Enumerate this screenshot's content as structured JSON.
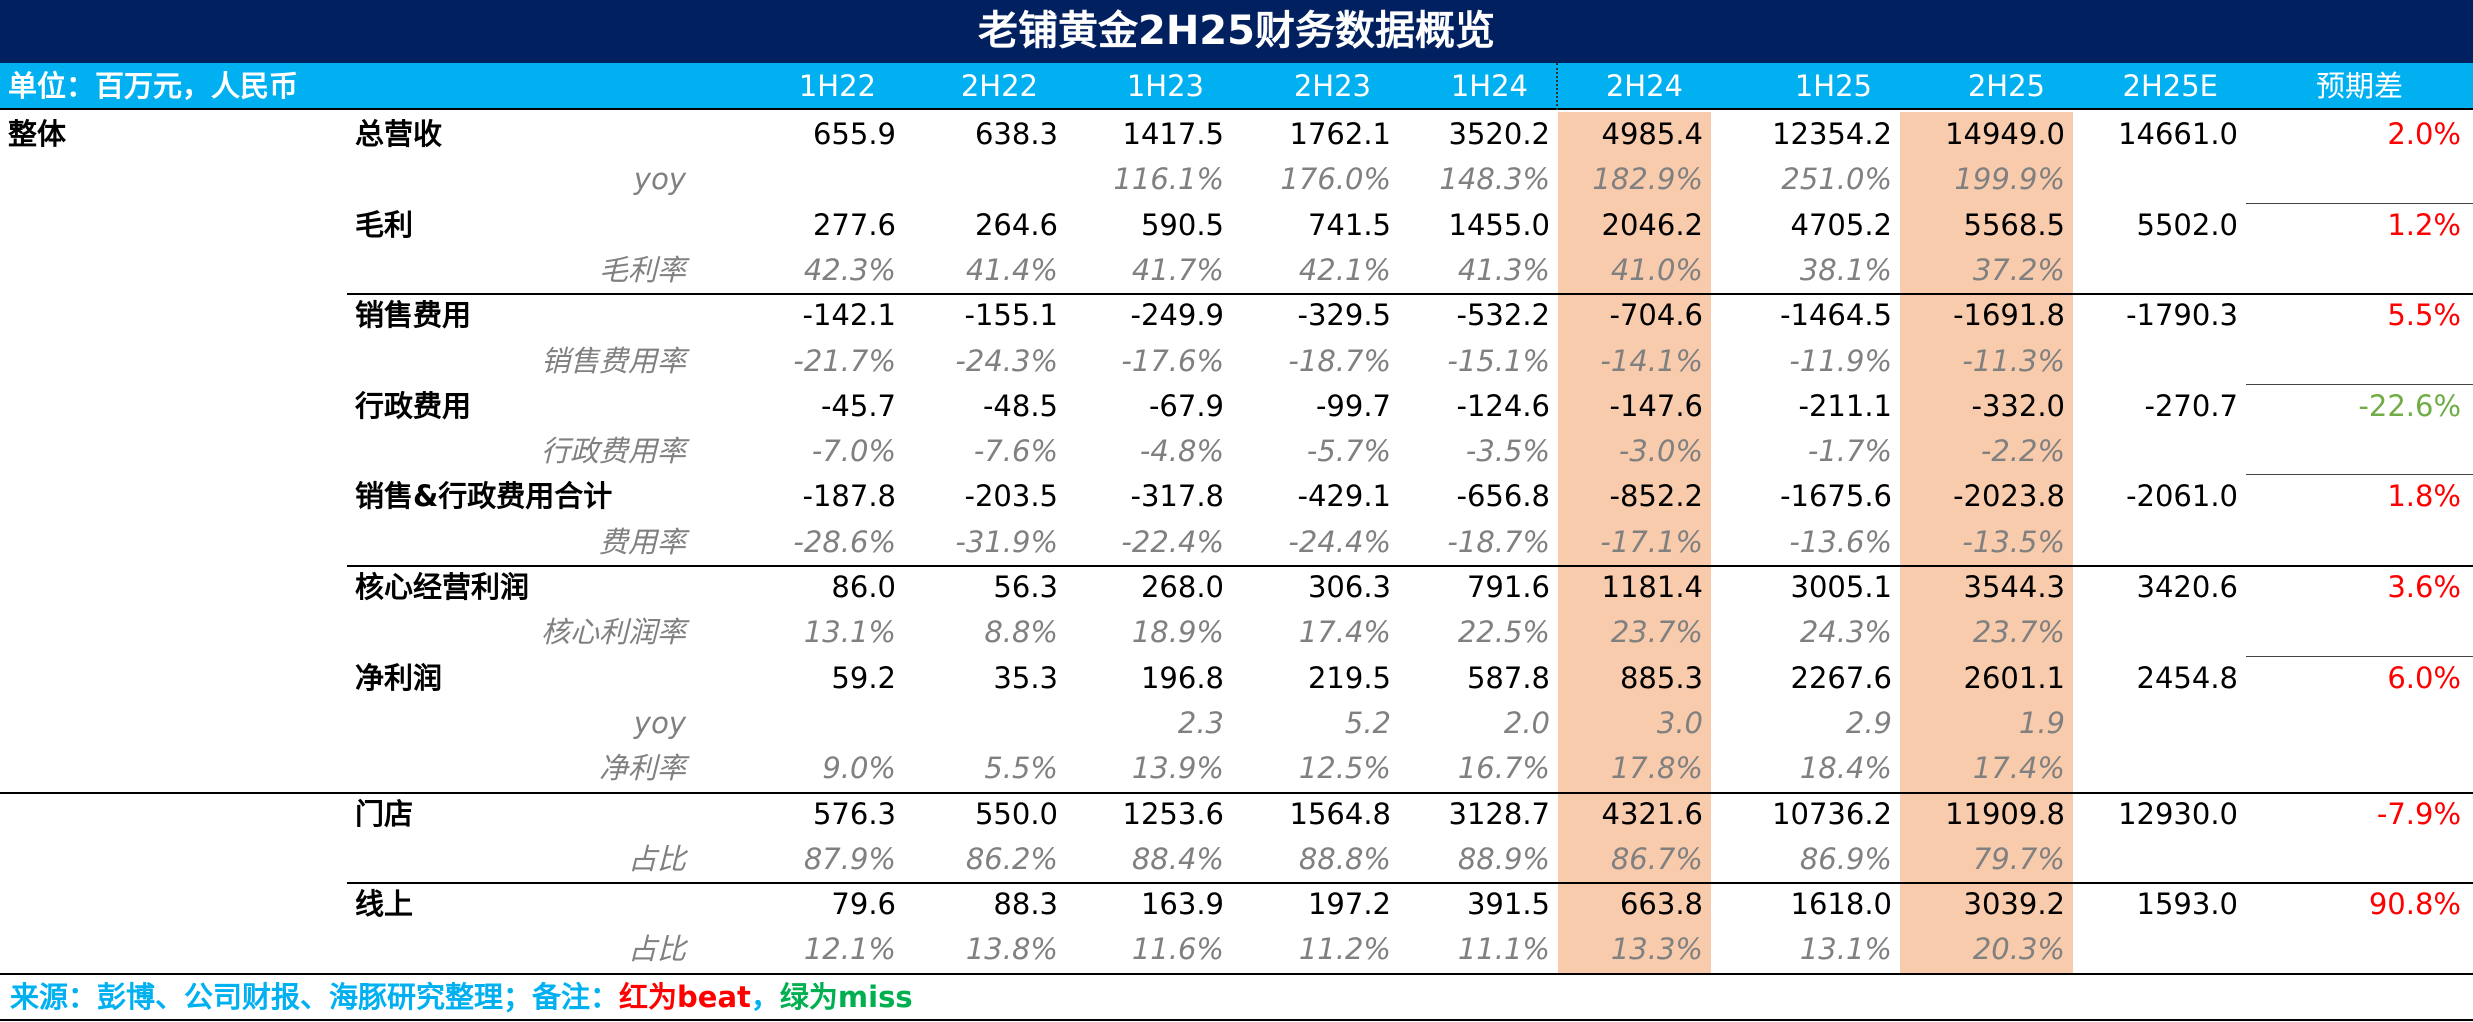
{
  "header": {
    "title": "老铺黄金2H25财务数据概览"
  },
  "table": {
    "unit": "单位：百万元，人民币",
    "columns": [
      {
        "label": "1H22"
      },
      {
        "label": "2H22"
      },
      {
        "label": "1H23"
      },
      {
        "label": "2H23"
      },
      {
        "label": "1H24"
      },
      {
        "label": "2H24",
        "highlight": "#f8cbad"
      },
      {
        "label": "1H25"
      },
      {
        "label": "2H25",
        "highlight": "#f8cbad"
      },
      {
        "label": "2H25E"
      },
      {
        "label": "预期差"
      }
    ],
    "group": "整体",
    "rows": [
      {
        "label": "总营收",
        "values": [
          "655.9",
          "638.3",
          "1417.5",
          "1762.1",
          "3520.2",
          "4985.4",
          "12354.2",
          "14949.0",
          "14661.0",
          "2.0%"
        ],
        "diff_color": "#ff0000"
      },
      {
        "sub_label": "yoy",
        "values": [
          null,
          null,
          "116.1%",
          "176.0%",
          "148.3%",
          "182.9%",
          "251.0%",
          "199.9%"
        ]
      },
      {
        "label": "毛利",
        "values": [
          "277.6",
          "264.6",
          "590.5",
          "741.5",
          "1455.0",
          "2046.2",
          "4705.2",
          "5568.5",
          "5502.0",
          "1.2%"
        ],
        "diff_color": "#ff0000"
      },
      {
        "sub_label": "毛利率",
        "values": [
          "42.3%",
          "41.4%",
          "41.7%",
          "42.1%",
          "41.3%",
          "41.0%",
          "38.1%",
          "37.2%"
        ]
      },
      {
        "label": "销售费用",
        "values": [
          "-142.1",
          "-155.1",
          "-249.9",
          "-329.5",
          "-532.2",
          "-704.6",
          "-1464.5",
          "-1691.8",
          "-1790.3",
          "5.5%"
        ],
        "diff_color": "#ff0000"
      },
      {
        "sub_label": "销售费用率",
        "values": [
          "-21.7%",
          "-24.3%",
          "-17.6%",
          "-18.7%",
          "-15.1%",
          "-14.1%",
          "-11.9%",
          "-11.3%"
        ]
      },
      {
        "label": "行政费用",
        "values": [
          "-45.7",
          "-48.5",
          "-67.9",
          "-99.7",
          "-124.6",
          "-147.6",
          "-211.1",
          "-332.0",
          "-270.7",
          "-22.6%"
        ],
        "diff_color": "#70ad47"
      },
      {
        "sub_label": "行政费用率",
        "values": [
          "-7.0%",
          "-7.6%",
          "-4.8%",
          "-5.7%",
          "-3.5%",
          "-3.0%",
          "-1.7%",
          "-2.2%"
        ]
      },
      {
        "label": "销售&行政费用合计",
        "values": [
          "-187.8",
          "-203.5",
          "-317.8",
          "-429.1",
          "-656.8",
          "-852.2",
          "-1675.6",
          "-2023.8",
          "-2061.0",
          "1.8%"
        ],
        "diff_color": "#ff0000"
      },
      {
        "sub_label": "费用率",
        "values": [
          "-28.6%",
          "-31.9%",
          "-22.4%",
          "-24.4%",
          "-18.7%",
          "-17.1%",
          "-13.6%",
          "-13.5%"
        ]
      },
      {
        "label": "核心经营利润",
        "values": [
          "86.0",
          "56.3",
          "268.0",
          "306.3",
          "791.6",
          "1181.4",
          "3005.1",
          "3544.3",
          "3420.6",
          "3.6%"
        ],
        "diff_color": "#ff0000"
      },
      {
        "sub_label": "核心利润率",
        "values": [
          "13.1%",
          "8.8%",
          "18.9%",
          "17.4%",
          "22.5%",
          "23.7%",
          "24.3%",
          "23.7%"
        ]
      },
      {
        "label": "净利润",
        "values": [
          "59.2",
          "35.3",
          "196.8",
          "219.5",
          "587.8",
          "885.3",
          "2267.6",
          "2601.1",
          "2454.8",
          "6.0%"
        ],
        "diff_color": "#ff0000"
      },
      {
        "sub_label": "yoy",
        "values": [
          null,
          null,
          "2.3",
          "5.2",
          "2.0",
          "3.0",
          "2.9",
          "1.9"
        ]
      },
      {
        "sub_label": "净利率",
        "values": [
          "9.0%",
          "5.5%",
          "13.9%",
          "12.5%",
          "16.7%",
          "17.8%",
          "18.4%",
          "17.4%"
        ]
      },
      {
        "label": "门店",
        "values": [
          "576.3",
          "550.0",
          "1253.6",
          "1564.8",
          "3128.7",
          "4321.6",
          "10736.2",
          "11909.8",
          "12930.0",
          "-7.9%"
        ],
        "diff_color": "#ff0000"
      },
      {
        "sub_label": "占比",
        "values": [
          "87.9%",
          "86.2%",
          "88.4%",
          "88.8%",
          "88.9%",
          "86.7%",
          "86.9%",
          "79.7%"
        ]
      },
      {
        "label": "线上",
        "values": [
          "79.6",
          "88.3",
          "163.9",
          "197.2",
          "391.5",
          "663.8",
          "1618.0",
          "3039.2",
          "1593.0",
          "90.8%"
        ],
        "diff_color": "#ff0000"
      },
      {
        "sub_label": "占比",
        "values": [
          "12.1%",
          "13.8%",
          "11.6%",
          "11.2%",
          "11.1%",
          "13.3%",
          "13.1%",
          "20.3%"
        ]
      }
    ]
  },
  "footer": {
    "parts": [
      {
        "text": "来源：彭博、公司财报、海豚研究整理；备注：",
        "color": "#00b0f0"
      },
      {
        "text": "红为beat",
        "color": "#ff0000"
      },
      {
        "text": "，",
        "color": "#00b0f0"
      },
      {
        "text": "绿为miss",
        "color": "#00b050"
      }
    ]
  }
}
